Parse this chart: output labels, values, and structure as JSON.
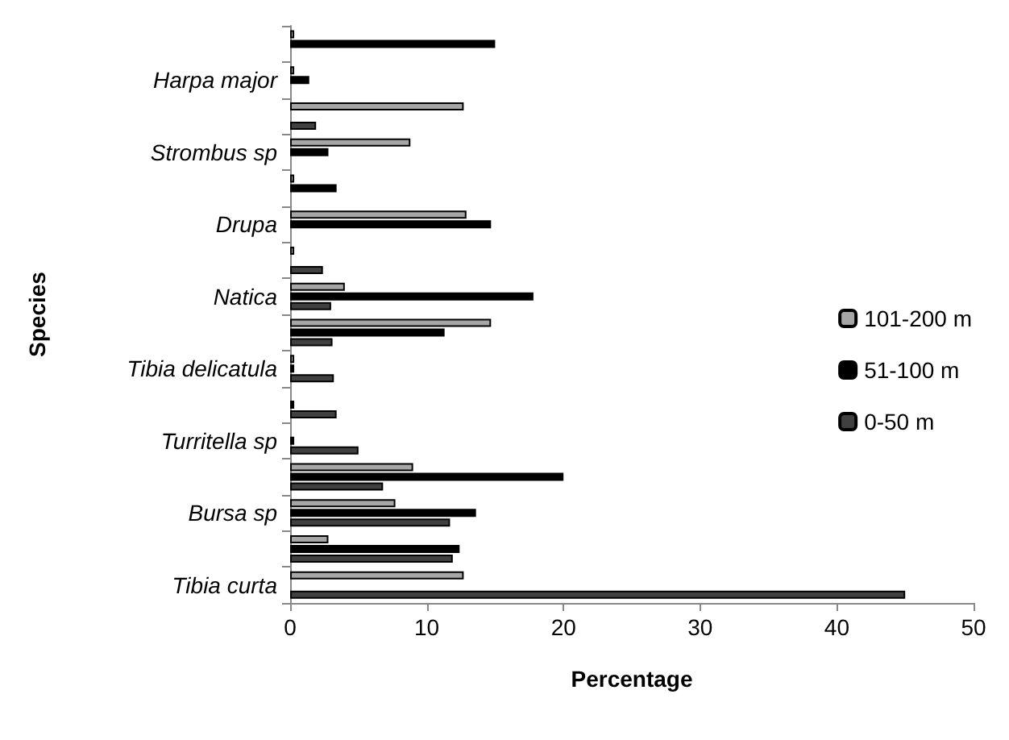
{
  "chart_data": {
    "type": "bar",
    "orientation": "horizontal",
    "xlabel": "Percentage",
    "ylabel": "Species",
    "categories": [
      null,
      "Harpa major",
      null,
      "Strombus sp",
      null,
      "Drupa",
      null,
      "Natica",
      null,
      "Tibia delicatula",
      null,
      "Turritella sp",
      null,
      "Bursa sp",
      null,
      "Tibia curta"
    ],
    "series": [
      {
        "name": "101-200 m",
        "color": "#a6a6a6",
        "values": [
          0.3,
          0.3,
          12.7,
          8.8,
          0.3,
          12.9,
          0.3,
          4.0,
          14.7,
          0.3,
          0,
          0,
          9.0,
          7.7,
          2.8,
          12.7
        ]
      },
      {
        "name": "51-100 m",
        "color": "#000000",
        "values": [
          15.0,
          1.4,
          0,
          2.8,
          3.4,
          14.7,
          0,
          17.8,
          11.3,
          0.3,
          0.3,
          0.3,
          20.0,
          13.6,
          12.4,
          0
        ]
      },
      {
        "name": "0-50 m",
        "color": "#404040",
        "values": [
          0,
          0,
          1.9,
          0,
          0,
          0,
          2.4,
          3.0,
          3.1,
          3.2,
          3.4,
          5.0,
          6.8,
          11.7,
          11.9,
          45.0
        ]
      }
    ],
    "xlim": [
      0,
      50
    ],
    "xticks": [
      0,
      10,
      20,
      30,
      40,
      50
    ],
    "grid": false,
    "legend": "right"
  }
}
